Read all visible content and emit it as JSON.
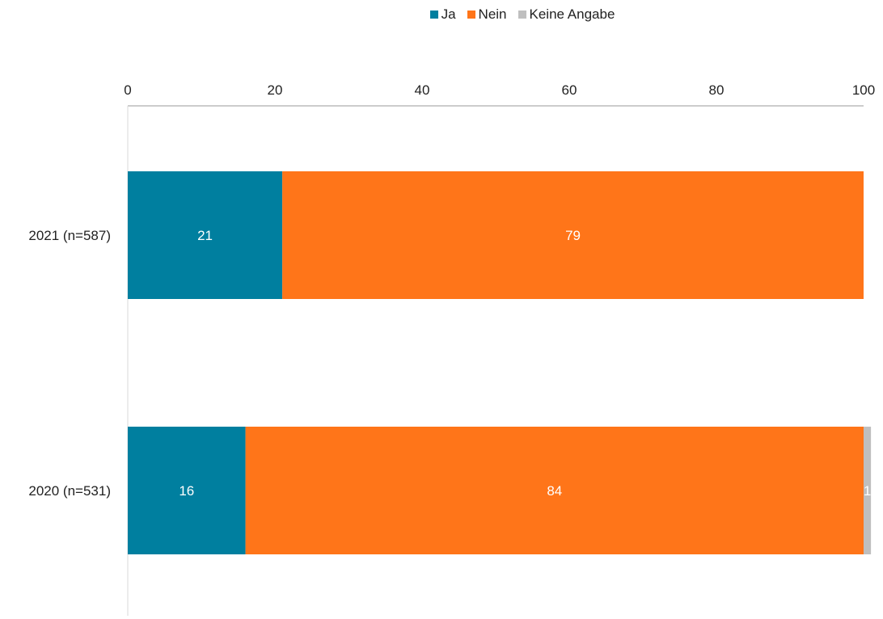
{
  "chart_data": {
    "type": "bar",
    "orientation": "horizontal",
    "stacked": true,
    "categories": [
      "2021 (n=587)",
      "2020 (n=531)"
    ],
    "series": [
      {
        "name": "Ja",
        "color": "#007f9f",
        "values": [
          21,
          16
        ],
        "labels": [
          "21",
          "16"
        ]
      },
      {
        "name": "Nein",
        "color": "#ff7519",
        "values": [
          79,
          84
        ],
        "labels": [
          "79",
          "84"
        ]
      },
      {
        "name": "Keine Angabe",
        "color": "#bfbfbf",
        "values": [
          0,
          1
        ],
        "labels": [
          "",
          "1"
        ]
      }
    ],
    "x_ticks": [
      "0",
      "20",
      "40",
      "60",
      "80",
      "100"
    ],
    "xlim": [
      0,
      100
    ],
    "axis_position": "top",
    "legend_position": "top",
    "grid": false
  }
}
